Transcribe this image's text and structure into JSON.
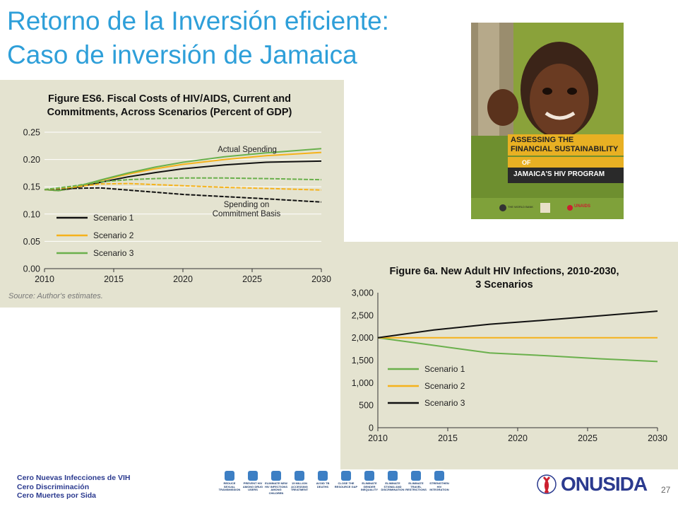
{
  "slide": {
    "title_line1": "Retorno de la Inversión eficiente:",
    "title_line2": "Caso de inversión de Jamaica",
    "page_number": "27"
  },
  "footer": {
    "lines": [
      "Cero Nuevas Infecciones de VIH",
      "Cero Discriminación",
      "Cero Muertes por Sida"
    ],
    "logo_text": "ONUSIDA",
    "goals": [
      "REDUCE SEXUAL TRANSMISSION",
      "PREVENT HIV AMONG DRUG USERS",
      "ELIMINATE NEW HIV INFECTIONS AMONG CHILDREN",
      "15 MILLION ACCESSING TREATMENT",
      "AVOID TB DEATHS",
      "CLOSE THE RESOURCE GAP",
      "ELIMINATE GENDER INEQUALITY",
      "ELIMINATE STIGMA AND DISCRIMINATION",
      "ELIMINATE TRAVEL RESTRICTIONS",
      "STRENGTHEN HIV INTEGRATION"
    ],
    "colors": {
      "footer_text": "#2b3a8f",
      "goal_icon": "#3d7fc4",
      "logo": "#2b3a8f",
      "ribbon": "#cc1f2f"
    }
  },
  "cover": {
    "line1": "ASSESSING THE",
    "line2": "FINANCIAL SUSTAINABILITY",
    "line3": "OF",
    "line4": "JAMAICA'S HIV PROGRAM",
    "logos_text": "THE WORLD BANK",
    "unaids_text": "UNAIDS"
  },
  "chart_data": [
    {
      "type": "line",
      "title": "Figure ES6. Fiscal Costs of HIV/AIDS, Current and Commitments, Across Scenarios (Percent of GDP)",
      "title_lines": [
        "Figure ES6. Fiscal Costs of HIV/AIDS, Current and",
        "Commitments, Across Scenarios (Percent of GDP)"
      ],
      "source": "Source: Author's estimates.",
      "xlim": [
        2010,
        2030
      ],
      "ylim": [
        0,
        0.25
      ],
      "x_ticks": [
        "2010",
        "2015",
        "2020",
        "2025",
        "2030"
      ],
      "y_ticks": [
        "0.00",
        "0.05",
        "0.10",
        "0.15",
        "0.20",
        "0.25"
      ],
      "annotations": [
        "Actual Spending",
        "Spending on",
        "Commitment Basis"
      ],
      "legend": [
        "Scenario 1",
        "Scenario 2",
        "Scenario 3"
      ],
      "legend_position": "bottom-left",
      "series": [
        {
          "name": "Scenario 1",
          "group": "Actual Spending",
          "color": "#111111",
          "dashed": false,
          "x": [
            2010,
            2011,
            2012,
            2014,
            2016,
            2018,
            2020,
            2023,
            2026,
            2030
          ],
          "y": [
            0.145,
            0.143,
            0.147,
            0.158,
            0.168,
            0.176,
            0.183,
            0.19,
            0.195,
            0.197
          ]
        },
        {
          "name": "Scenario 2",
          "group": "Actual Spending",
          "color": "#f5b21b",
          "dashed": false,
          "x": [
            2010,
            2011,
            2012,
            2014,
            2016,
            2018,
            2020,
            2023,
            2026,
            2030
          ],
          "y": [
            0.145,
            0.143,
            0.148,
            0.161,
            0.173,
            0.183,
            0.191,
            0.2,
            0.207,
            0.213
          ]
        },
        {
          "name": "Scenario 3",
          "group": "Actual Spending",
          "color": "#6ab04c",
          "dashed": false,
          "x": [
            2010,
            2011,
            2012,
            2014,
            2016,
            2018,
            2020,
            2023,
            2026,
            2030
          ],
          "y": [
            0.145,
            0.143,
            0.148,
            0.162,
            0.175,
            0.186,
            0.195,
            0.205,
            0.212,
            0.22
          ]
        },
        {
          "name": "Scenario 1",
          "group": "Spending on Commitment Basis",
          "color": "#111111",
          "dashed": true,
          "x": [
            2010,
            2012,
            2014,
            2016,
            2018,
            2020,
            2023,
            2026,
            2030
          ],
          "y": [
            0.145,
            0.147,
            0.148,
            0.144,
            0.14,
            0.136,
            0.132,
            0.128,
            0.122
          ]
        },
        {
          "name": "Scenario 2",
          "group": "Spending on Commitment Basis",
          "color": "#f5b21b",
          "dashed": true,
          "x": [
            2010,
            2012,
            2014,
            2016,
            2018,
            2020,
            2023,
            2026,
            2030
          ],
          "y": [
            0.145,
            0.149,
            0.155,
            0.156,
            0.154,
            0.152,
            0.149,
            0.147,
            0.144
          ]
        },
        {
          "name": "Scenario 3",
          "group": "Spending on Commitment Basis",
          "color": "#6ab04c",
          "dashed": true,
          "x": [
            2010,
            2012,
            2014,
            2016,
            2018,
            2020,
            2023,
            2026,
            2030
          ],
          "y": [
            0.145,
            0.151,
            0.159,
            0.163,
            0.165,
            0.166,
            0.166,
            0.165,
            0.163
          ]
        }
      ]
    },
    {
      "type": "line",
      "title": "Figure 6a. New Adult HIV Infections, 2010-2030, 3 Scenarios",
      "title_lines": [
        "Figure 6a. New Adult HIV Infections, 2010-2030,",
        "3 Scenarios"
      ],
      "xlim": [
        2010,
        2030
      ],
      "ylim": [
        0,
        3000
      ],
      "x_ticks": [
        "2010",
        "2015",
        "2020",
        "2025",
        "2030"
      ],
      "y_ticks": [
        "0",
        "500",
        "1,000",
        "1,500",
        "2,000",
        "2,500",
        "3,000"
      ],
      "legend": [
        "Scenario 1",
        "Scenario 2",
        "Scenario 3"
      ],
      "legend_position": "bottom-left",
      "series": [
        {
          "name": "Scenario 1",
          "color": "#6ab04c",
          "x": [
            2010,
            2014,
            2018,
            2022,
            2026,
            2030
          ],
          "y": [
            2000,
            1830,
            1660,
            1600,
            1530,
            1470
          ]
        },
        {
          "name": "Scenario 2",
          "color": "#f5b21b",
          "x": [
            2010,
            2030
          ],
          "y": [
            2000,
            2000
          ]
        },
        {
          "name": "Scenario 3",
          "color": "#111111",
          "x": [
            2010,
            2014,
            2018,
            2022,
            2026,
            2030
          ],
          "y": [
            2000,
            2170,
            2300,
            2390,
            2490,
            2590
          ]
        }
      ]
    }
  ]
}
